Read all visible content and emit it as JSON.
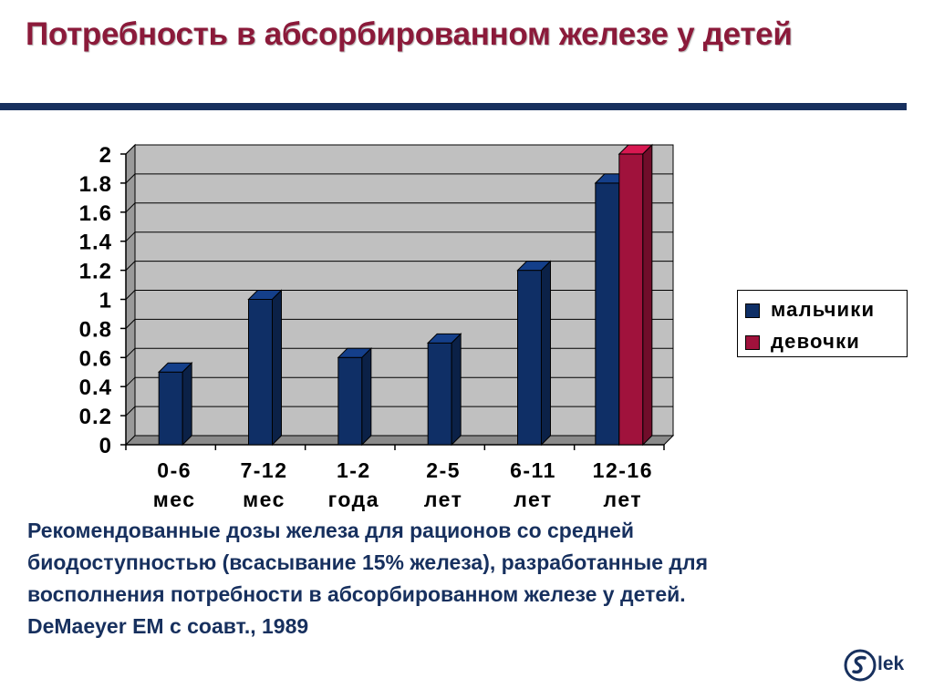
{
  "slide": {
    "title": "Потребность в абсорбированном железе у детей",
    "title_color": "#8b1a3a",
    "rule_color": "#17305e",
    "caption_lines": [
      "Рекомендованные дозы железа для рационов со средней",
      "биодоступностью (всасывание 15% железа), разработанные для",
      "восполнения потребности в абсорбированном железе у детей.",
      "DeMaeyer EM с соавт., 1989"
    ],
    "caption_color": "#17305e",
    "logo_text": "lek",
    "logo_color": "#17305e"
  },
  "chart_data": {
    "type": "bar",
    "categories": [
      [
        "0-6",
        "мес"
      ],
      [
        "7-12",
        "мес"
      ],
      [
        "1-2",
        "года"
      ],
      [
        "2-5",
        "лет"
      ],
      [
        "6-11",
        "лет"
      ],
      [
        "12-16",
        "лет"
      ]
    ],
    "series": [
      {
        "name": "мальчики",
        "color": "#0f2f66",
        "values": [
          0.5,
          1.0,
          0.6,
          0.7,
          1.2,
          1.8
        ]
      },
      {
        "name": "девочки",
        "color": "#a0123c",
        "values": [
          null,
          null,
          null,
          null,
          null,
          2.0
        ]
      }
    ],
    "ylim": [
      0,
      2
    ],
    "yticks": [
      "2",
      "1.8",
      "1.6",
      "1.4",
      "1.2",
      "1",
      "0.8",
      "0.6",
      "0.4",
      "0.2",
      "0"
    ],
    "grid": true,
    "plot_background": "#c0c0c0",
    "legend_position": "right",
    "xlabel": "",
    "ylabel": "",
    "title": ""
  }
}
